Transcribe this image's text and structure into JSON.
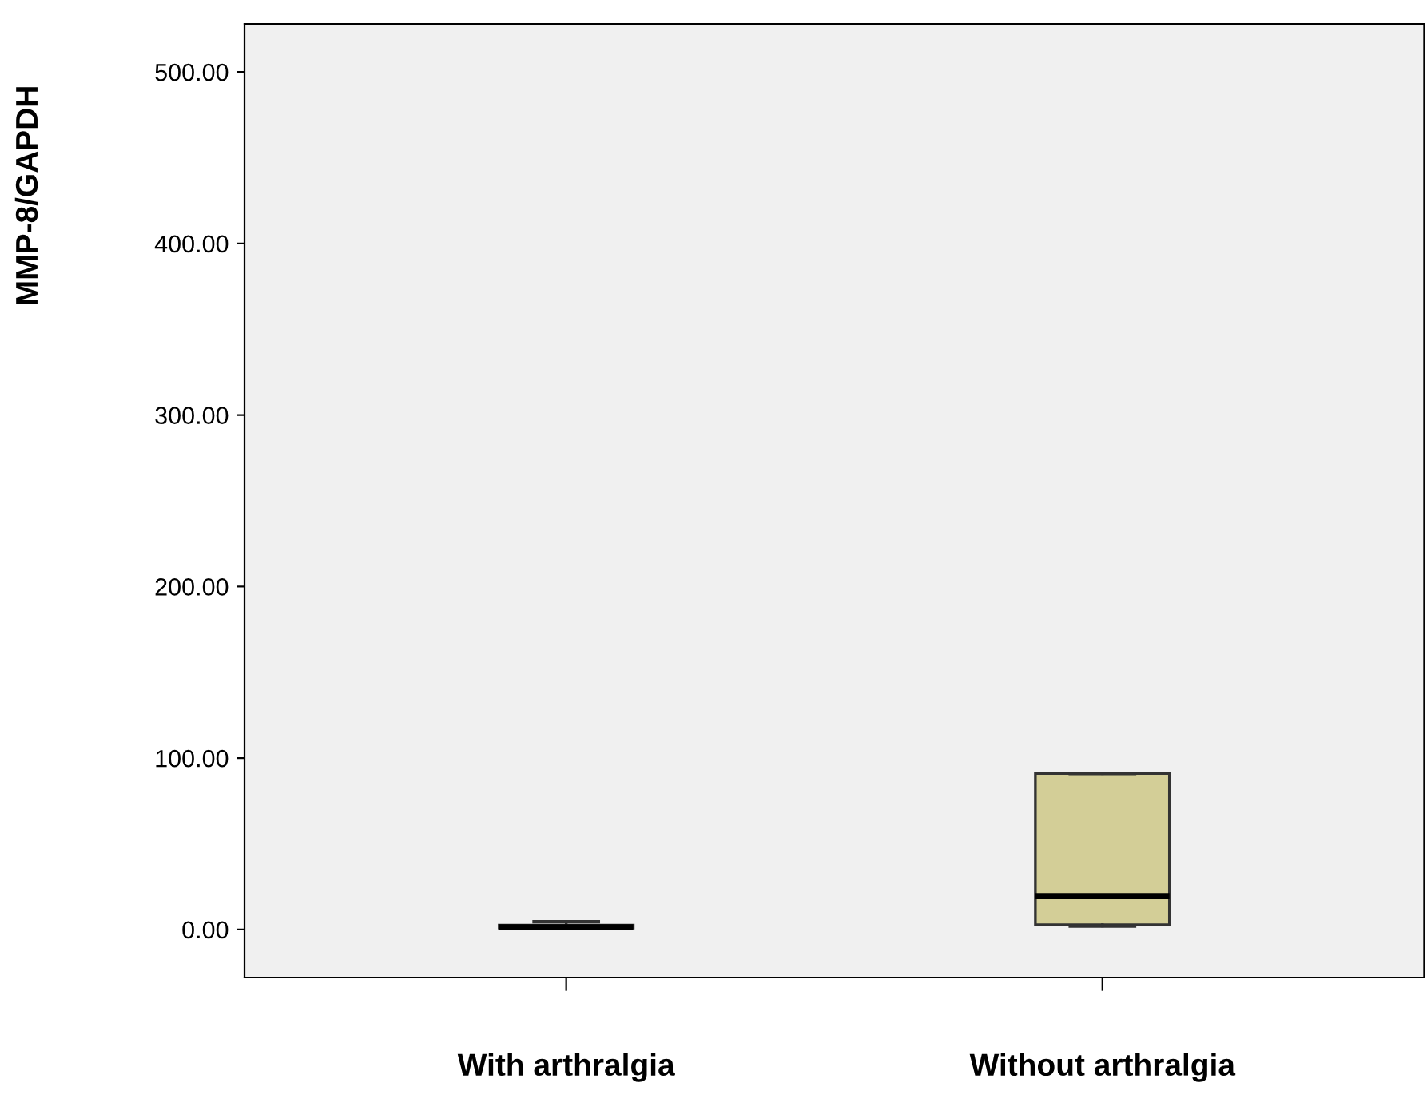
{
  "chart_data": {
    "type": "box",
    "ylabel": "MMP-8/GAPDH",
    "categories": [
      "With arthralgia",
      "Without arthralgia"
    ],
    "boxes": [
      {
        "low": 0.5,
        "q1": 0.8,
        "median": 1.5,
        "q3": 2.5,
        "high": 4.5
      },
      {
        "low": 2,
        "q1": 2.8,
        "median": 19.6,
        "q3": 91,
        "high": 91
      }
    ],
    "color": "#d3ce97",
    "ylim": [
      -28,
      528
    ],
    "yticks": [
      {
        "value": 0,
        "label": "0.00"
      },
      {
        "value": 100,
        "label": "100.00"
      },
      {
        "value": 200,
        "label": "200.00"
      },
      {
        "value": 300,
        "label": "300.00"
      },
      {
        "value": 400,
        "label": "400.00"
      },
      {
        "value": 500,
        "label": "500.00"
      }
    ],
    "grid": false
  }
}
